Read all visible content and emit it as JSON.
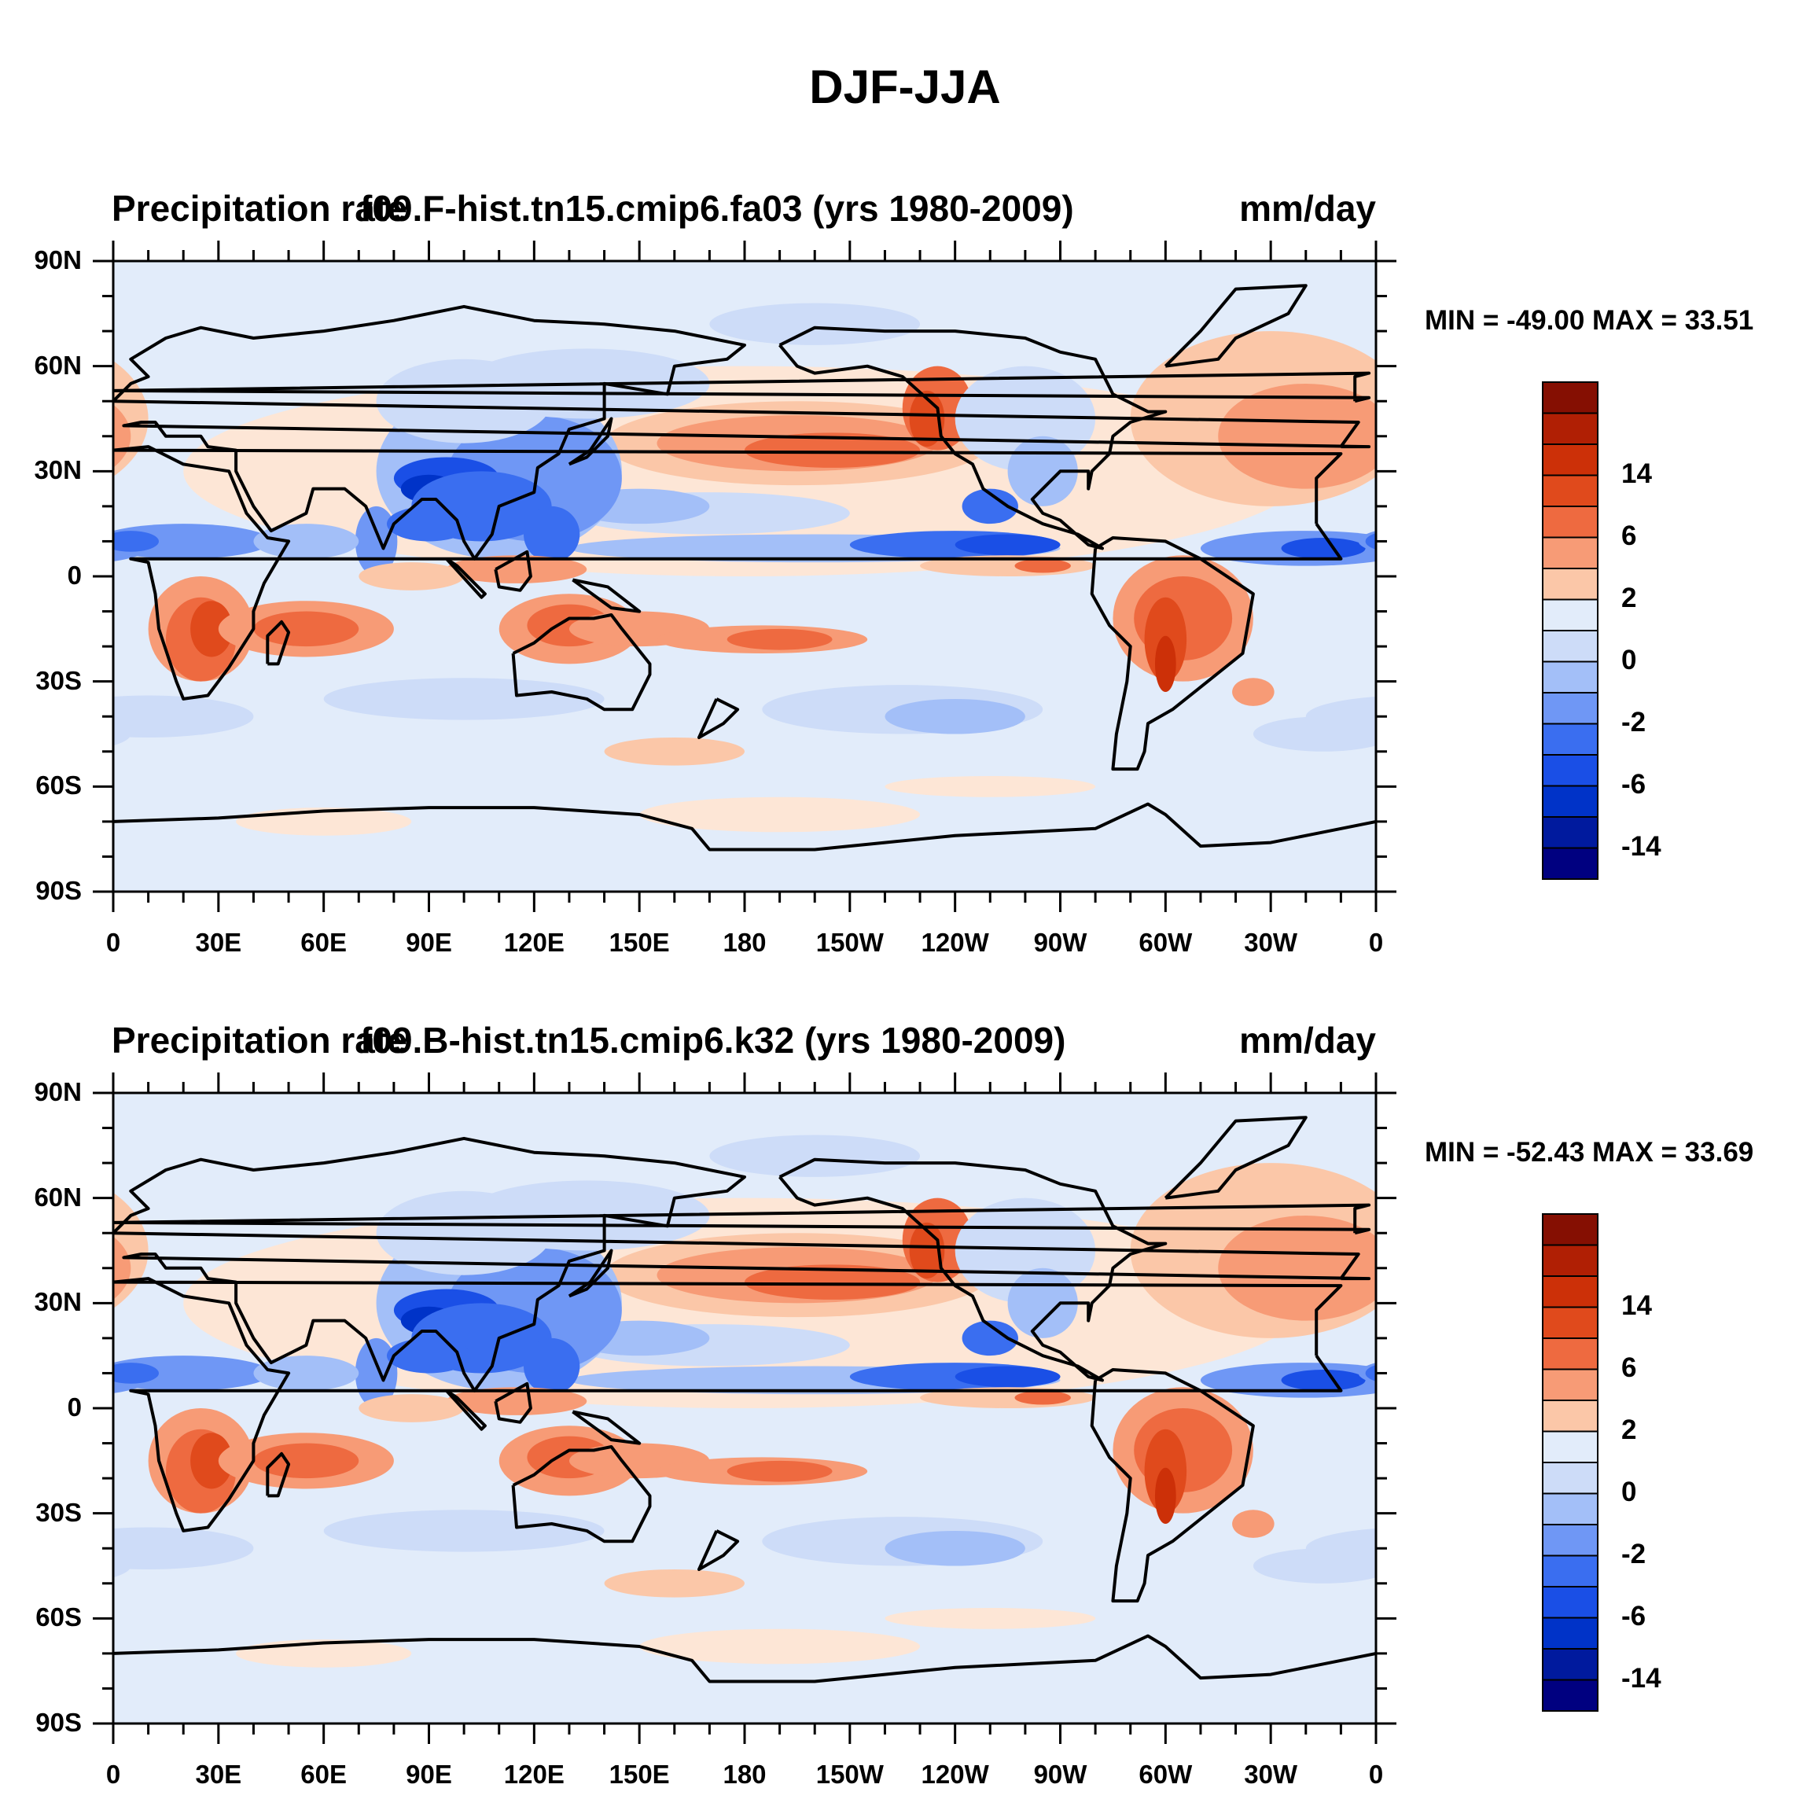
{
  "title": "DJF-JJA",
  "colors": {
    "levels": [
      "#000080",
      "#001a9e",
      "#0033c8",
      "#1a4fe6",
      "#3a6ef0",
      "#6f97f5",
      "#a3bff8",
      "#cddcf8",
      "#e2ecfa",
      "#fde6d6",
      "#fbc7a8",
      "#f79b76",
      "#ee6a40",
      "#e04a1c",
      "#cc3008",
      "#b01f04",
      "#850f02"
    ],
    "land_outline": "#000000",
    "background": "#ffffff"
  },
  "colorbar": {
    "labels": [
      "14",
      "6",
      "2",
      "0",
      "-2",
      "-6",
      "-14"
    ]
  },
  "panels": [
    {
      "left_title": "Precipitation rate",
      "center_title": "f09.F-hist.tn15.cmip6.fa03 (yrs 1980-2009)",
      "units": "mm/day",
      "minmax": "MIN = -49.00 MAX =  33.51",
      "min_value": -49.0,
      "max_value": 33.51
    },
    {
      "left_title": "Precipitation rate",
      "center_title": "f09.B-hist.tn15.cmip6.k32 (yrs 1980-2009)",
      "units": "mm/day",
      "minmax": "MIN = -52.43 MAX =  33.69",
      "min_value": -52.43,
      "max_value": 33.69
    }
  ],
  "axes": {
    "lat_ticks": [
      "90N",
      "60N",
      "30N",
      "0",
      "30S",
      "60S",
      "90S"
    ],
    "lon_ticks": [
      "0",
      "30E",
      "60E",
      "90E",
      "120E",
      "150E",
      "180",
      "150W",
      "120W",
      "90W",
      "60W",
      "30W",
      "0"
    ]
  }
}
